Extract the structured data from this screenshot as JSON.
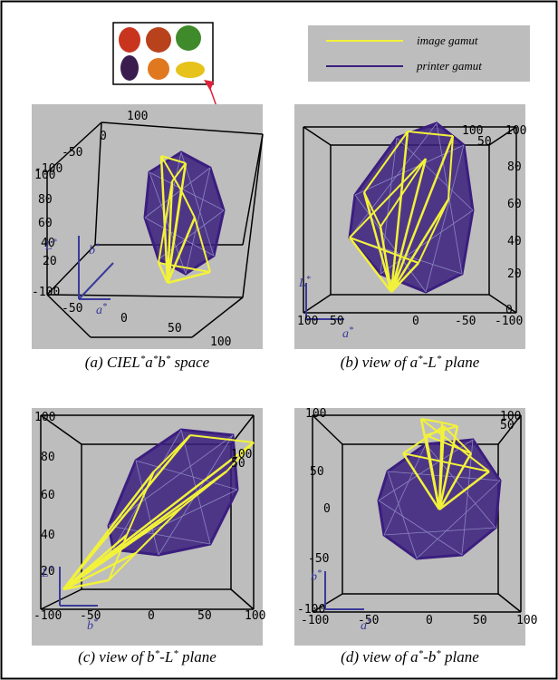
{
  "legend": {
    "items": [
      {
        "label": "image gamut",
        "color": "#f2f23a"
      },
      {
        "label": "printer gamut",
        "color": "#3b1e7e"
      }
    ]
  },
  "panels": [
    {
      "caption": [
        "(a) CIEL",
        "*",
        "a",
        "*",
        "b",
        "*",
        " space"
      ],
      "ticks": [
        "100",
        "0",
        "-50",
        "-100",
        "100",
        "80",
        "60",
        "40",
        "20",
        "-100",
        "-50",
        "0",
        "50",
        "100"
      ],
      "axis_labels": [
        [
          "L",
          "*"
        ],
        [
          "b",
          "*"
        ],
        [
          "a",
          "*"
        ]
      ]
    },
    {
      "caption": [
        "(b) view of a",
        "*",
        "-L",
        "*",
        " plane"
      ],
      "ticks": [
        "100",
        "50",
        "100",
        "80",
        "60",
        "40",
        "20",
        "0",
        "100",
        "50",
        "0",
        "-50",
        "-100"
      ],
      "axis_labels": [
        [
          "L",
          "*"
        ],
        [
          "a",
          "*"
        ]
      ]
    },
    {
      "caption": [
        "(c) view of b",
        "*",
        "-L",
        "*",
        " plane"
      ],
      "ticks": [
        "100",
        "80",
        "60",
        "40",
        "20",
        "100",
        "50",
        "-100",
        "-50",
        "0",
        "50",
        "100"
      ],
      "axis_labels": [
        [
          "L",
          "*"
        ],
        [
          "b",
          "*"
        ]
      ]
    },
    {
      "caption": [
        "(d) view of a",
        "*",
        "-b",
        "*",
        " plane"
      ],
      "ticks": [
        "100",
        "50",
        "0",
        "-50",
        "-100",
        "100",
        "50",
        "-100",
        "-50",
        "0",
        "50",
        "100"
      ],
      "axis_labels": [
        [
          "b",
          "*"
        ],
        [
          "a",
          "*"
        ]
      ]
    }
  ]
}
